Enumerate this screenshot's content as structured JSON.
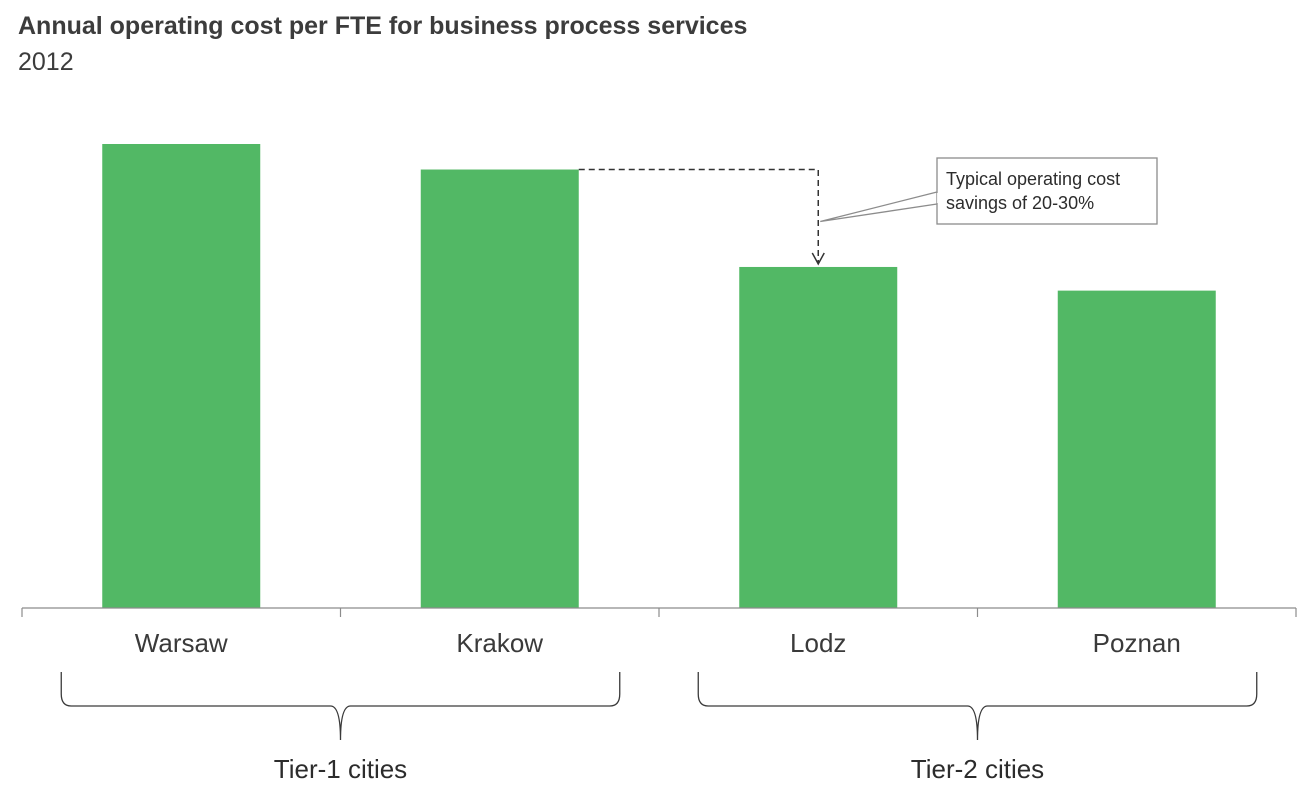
{
  "title": "Annual operating cost per FTE for business process services",
  "subtitle": "2012",
  "chart_data": {
    "type": "bar",
    "categories": [
      "Warsaw",
      "Krakow",
      "Lodz",
      "Poznan"
    ],
    "values": [
      100,
      94.5,
      73.5,
      68.4
    ],
    "ylim": [
      0,
      100
    ],
    "grid": false,
    "bar_color": "#52b865",
    "groups": [
      {
        "label": "Tier-1 cities",
        "categories": [
          "Warsaw",
          "Krakow"
        ]
      },
      {
        "label": "Tier-2 cities",
        "categories": [
          "Lodz",
          "Poznan"
        ]
      }
    ],
    "annotation": {
      "text_lines": [
        "Typical operating cost",
        "savings of 20-30%"
      ],
      "from": "Krakow",
      "to": "Lodz"
    }
  }
}
